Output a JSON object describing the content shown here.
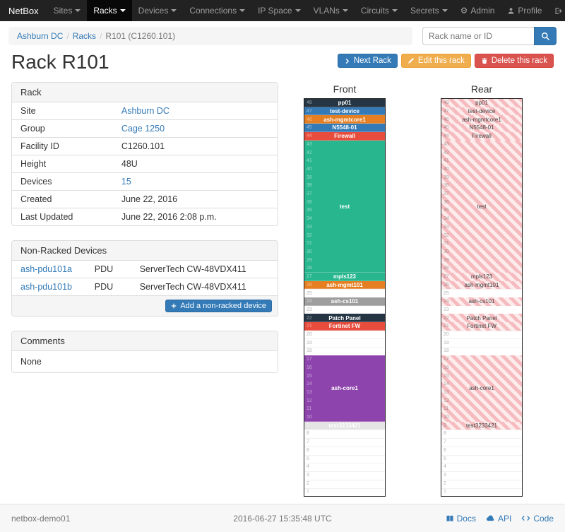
{
  "navbar": {
    "brand": "NetBox",
    "items": [
      {
        "label": "Sites",
        "active": false
      },
      {
        "label": "Racks",
        "active": true
      },
      {
        "label": "Devices",
        "active": false
      },
      {
        "label": "Connections",
        "active": false
      },
      {
        "label": "IP Space",
        "active": false
      },
      {
        "label": "VLANs",
        "active": false
      },
      {
        "label": "Circuits",
        "active": false
      },
      {
        "label": "Secrets",
        "active": false
      }
    ],
    "right": [
      {
        "label": "Admin",
        "icon": "gear"
      },
      {
        "label": "Profile",
        "icon": "user"
      },
      {
        "label": "Log out",
        "icon": "log-out"
      }
    ]
  },
  "breadcrumb": [
    {
      "label": "Ashburn DC",
      "link": true
    },
    {
      "label": "Racks",
      "link": true
    },
    {
      "label": "R101 (C1260.101)",
      "link": false
    }
  ],
  "search": {
    "placeholder": "Rack name or ID"
  },
  "actions": {
    "next_label": "Next Rack",
    "edit_label": "Edit this rack",
    "delete_label": "Delete this rack"
  },
  "page_title": "Rack R101",
  "rack_panel": {
    "title": "Rack",
    "rows": [
      {
        "label": "Site",
        "value": "Ashburn DC",
        "link": true
      },
      {
        "label": "Group",
        "value": "Cage 1250",
        "link": true
      },
      {
        "label": "Facility ID",
        "value": "C1260.101",
        "link": false
      },
      {
        "label": "Height",
        "value": "48U",
        "link": false
      },
      {
        "label": "Devices",
        "value": "15",
        "link": true
      },
      {
        "label": "Created",
        "value": "June 22, 2016",
        "link": false
      },
      {
        "label": "Last Updated",
        "value": "June 22, 2016 2:08 p.m.",
        "link": false
      }
    ]
  },
  "non_racked": {
    "title": "Non-Racked Devices",
    "rows": [
      {
        "name": "ash-pdu101a",
        "type": "PDU",
        "model": "ServerTech CW-48VDX411"
      },
      {
        "name": "ash-pdu101b",
        "type": "PDU",
        "model": "ServerTech CW-48VDX411"
      }
    ],
    "add_label": "Add a non-racked device"
  },
  "comments": {
    "title": "Comments",
    "body": "None"
  },
  "elevations": {
    "front_title": "Front",
    "rear_title": "Rear",
    "units_total": 48,
    "devices": [
      {
        "name": "pp01",
        "top_u": 48,
        "height": 1,
        "color": "#253544"
      },
      {
        "name": "test-device",
        "top_u": 47,
        "height": 1,
        "color": "#337ab7"
      },
      {
        "name": "ash-mgmtcore1",
        "top_u": 46,
        "height": 1,
        "color": "#e67e22"
      },
      {
        "name": "N5548-01",
        "top_u": 45,
        "height": 1,
        "color": "#337ab7"
      },
      {
        "name": "Firewall",
        "top_u": 44,
        "height": 1,
        "color": "#e74c3c"
      },
      {
        "name": "test",
        "top_u": 43,
        "height": 16,
        "color": "#27b68e"
      },
      {
        "name": "mpls123",
        "top_u": 27,
        "height": 1,
        "color": "#27b68e"
      },
      {
        "name": "ash-mgmt101",
        "top_u": 26,
        "height": 1,
        "color": "#e67e22"
      },
      {
        "name": "ash-cs101",
        "top_u": 24,
        "height": 1,
        "color": "#9e9e9e"
      },
      {
        "name": "Patch Panel",
        "top_u": 22,
        "height": 1,
        "color": "#253544"
      },
      {
        "name": "Fortinet FW",
        "top_u": 21,
        "height": 1,
        "color": "#e74c3c"
      },
      {
        "name": "ash-core1",
        "top_u": 17,
        "height": 8,
        "color": "#8e44ad"
      },
      {
        "name": "test3233421",
        "top_u": 9,
        "height": 1,
        "color": "#e4e4e4",
        "text_color": "#ffffff"
      }
    ]
  },
  "footer": {
    "hostname": "netbox-demo01",
    "timestamp": "2016-06-27 15:35:48 UTC",
    "links": [
      {
        "label": "Docs",
        "icon": "book"
      },
      {
        "label": "API",
        "icon": "cloud"
      },
      {
        "label": "Code",
        "icon": "code"
      }
    ]
  }
}
